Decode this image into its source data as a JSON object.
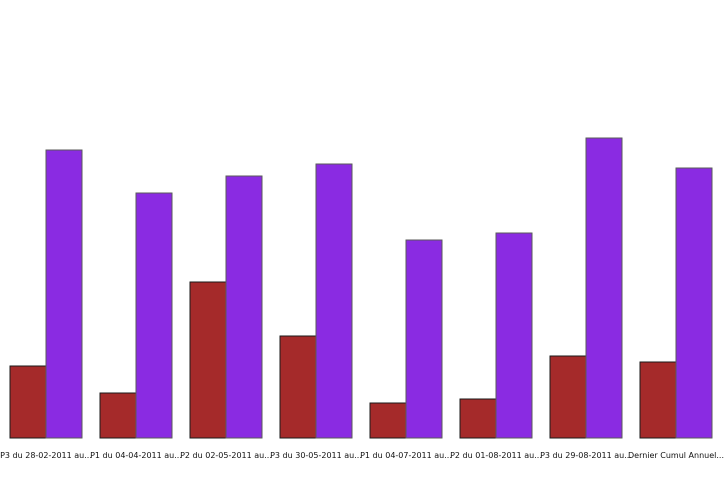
{
  "chart_data": {
    "type": "bar",
    "categories": [
      "P3 du 28-02-2011 au...",
      "P1 du 04-04-2011 au...",
      "P2 du 02-05-2011 au...",
      "P3 du 30-05-2011 au...",
      "P1 du 04-07-2011 au...",
      "P2 du 01-08-2011 au...",
      "P3 du 29-08-2011 au...",
      "Dernier Cumul Annuel..."
    ],
    "series": [
      {
        "color": "#a52a2a",
        "values": [
          72,
          45,
          156,
          102,
          35,
          39,
          82,
          76
        ]
      },
      {
        "color": "#8a2be2",
        "values": [
          288,
          245,
          262,
          274,
          198,
          205,
          300,
          270
        ]
      }
    ],
    "title": "",
    "xlabel": "",
    "ylabel": "",
    "ylim": [
      0,
      438
    ],
    "grid": false,
    "legend": "none"
  }
}
